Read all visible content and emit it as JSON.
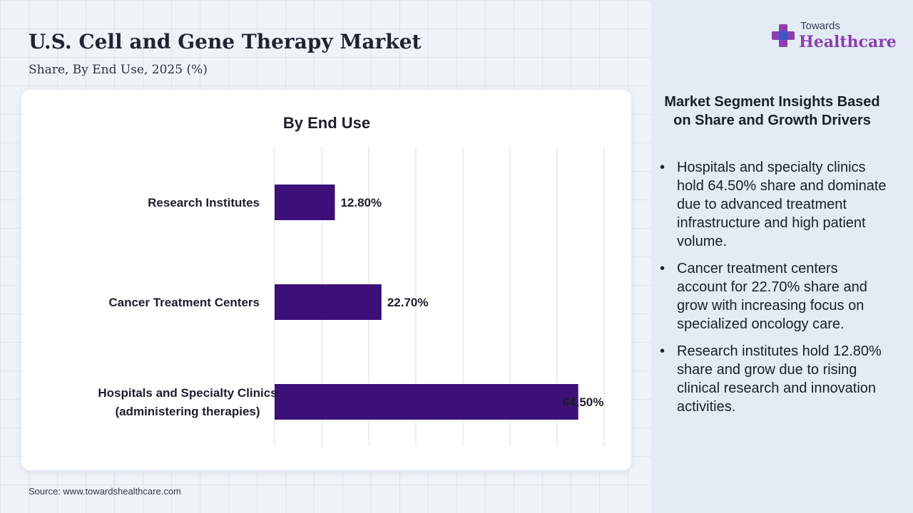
{
  "header": {
    "title": "U.S. Cell and Gene Therapy Market",
    "subtitle": "Share, By End Use, 2025 (%)"
  },
  "chart_data": {
    "type": "bar",
    "orientation": "horizontal",
    "title": "By End Use",
    "categories": [
      [
        "Research Institutes"
      ],
      [
        "Cancer Treatment Centers"
      ],
      [
        "Hospitals and Specialty Clinics",
        "(administering therapies)"
      ]
    ],
    "values": [
      12.8,
      22.7,
      64.5
    ],
    "data_labels": [
      "12.80%",
      "22.70%",
      "64.50%"
    ],
    "xlim": [
      0,
      70
    ],
    "grid": true,
    "bar_color": "#3d0f78"
  },
  "insights": {
    "title": "Market Segment Insights Based on Share and Growth Drivers",
    "bullet_glyph": "•",
    "items": [
      "Hospitals and specialty clinics hold 64.50% share and dominate due to advanced treatment infrastructure and high patient volume.",
      "Cancer treatment centers account for 22.70% share and grow with increasing focus on specialized oncology care.",
      "Research institutes hold 12.80% share and grow due to rising clinical research and innovation activities."
    ]
  },
  "logo": {
    "top_text": "Towards",
    "main_text": "Healthcare",
    "icon": "medical-cross-icon",
    "colors": {
      "purple": "#8b3fae",
      "blue": "#3a55c8"
    }
  },
  "footer": {
    "source": "Source: www.towardshealthcare.com"
  }
}
